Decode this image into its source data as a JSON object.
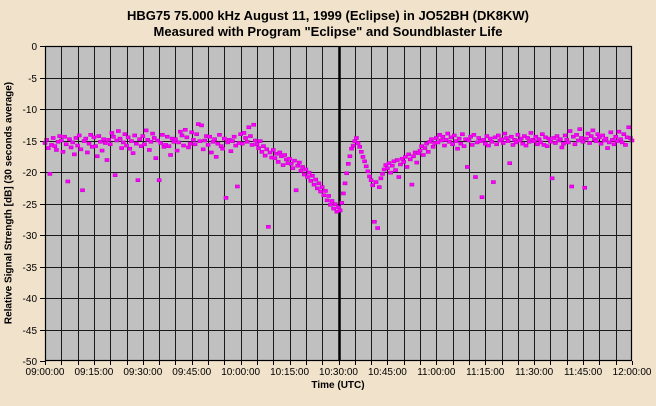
{
  "window": {
    "background_color": "#F1E2CB"
  },
  "title": {
    "line1": "HBG75 75.000 kHz August 11, 1999 (Eclipse) in JO52BH (DK8KW)",
    "line2": "Measured with Program \"Eclipse\" and Soundblaster Life"
  },
  "chart_data": {
    "type": "scatter",
    "title": "HBG75 75.000 kHz August 11, 1999 (Eclipse) in JO52BH (DK8KW)",
    "subtitle": "Measured with Program \"Eclipse\" and Soundblaster Life",
    "xlabel": "Time (UTC)",
    "ylabel": "Relative Signal Strength [dB] (30 seconds average)",
    "x_ticks": [
      "09:00:00",
      "09:15:00",
      "09:30:00",
      "09:45:00",
      "10:00:00",
      "10:15:00",
      "10:30:00",
      "10:45:00",
      "11:00:00",
      "11:15:00",
      "11:30:00",
      "11:45:00",
      "12:00:00"
    ],
    "x_tick_interval_minutes": 15,
    "x_minor_tick_minutes": 5,
    "x_range_minutes": 180,
    "y_ticks": [
      0,
      -5,
      -10,
      -15,
      -20,
      -25,
      -30,
      -35,
      -40,
      -45,
      -50
    ],
    "ylim": [
      -50,
      0
    ],
    "grid": true,
    "plot_bg": "#C0C0C0",
    "grid_color": "#1A1A1A",
    "border_color": "#000000",
    "point_color": "#FF00FF",
    "point_edge_color": "#C800C8",
    "text_color": "#000000",
    "eclipse_marker": {
      "time": "10:30:00",
      "minutes": 90,
      "stroke_width": 2.5,
      "color": "#000000"
    },
    "series": {
      "name": "Relative signal strength",
      "start": "09:00:00",
      "step_seconds": 30,
      "unit": "dB",
      "values": [
        -15.4,
        -14.9,
        -16.2,
        -20.3,
        -15.7,
        -14.6,
        -15.9,
        -16.5,
        -15.2,
        -14.3,
        -15.0,
        -16.8,
        -14.4,
        -15.6,
        -21.5,
        -14.8,
        -16.1,
        -15.3,
        -17.2,
        -14.6,
        -15.8,
        -14.2,
        -16.4,
        -22.9,
        -15.1,
        -14.7,
        -16.9,
        -15.5,
        -14.1,
        -16.0,
        -14.5,
        -15.9,
        -17.5,
        -14.3,
        -15.2,
        -16.6,
        -14.8,
        -15.4,
        -18.1,
        -14.9,
        -15.6,
        -13.8,
        -14.4,
        -20.5,
        -15.0,
        -13.5,
        -14.7,
        -16.2,
        -15.3,
        -14.0,
        -15.8,
        -14.5,
        -16.3,
        -15.1,
        -17.0,
        -14.2,
        -15.5,
        -21.3,
        -14.8,
        -15.9,
        -14.3,
        -15.6,
        -13.4,
        -14.9,
        -16.5,
        -15.2,
        -13.9,
        -14.6,
        -17.8,
        -15.0,
        -21.3,
        -15.4,
        -14.1,
        -16.0,
        -15.7,
        -14.4,
        -15.9,
        -17.3,
        -14.7,
        -15.2,
        -14.8,
        -16.6,
        -15.3,
        -13.6,
        -14.2,
        -15.8,
        -13.3,
        -14.5,
        -16.1,
        -15.5,
        -13.7,
        -14.9,
        -15.6,
        -14.0,
        -12.4,
        -15.1,
        -12.6,
        -16.4,
        -15.0,
        -14.3,
        -15.7,
        -14.4,
        -16.9,
        -15.2,
        -14.8,
        -17.6,
        -15.5,
        -14.1,
        -15.9,
        -16.3,
        -14.7,
        -24.1,
        -15.3,
        -14.9,
        -16.7,
        -15.1,
        -14.4,
        -15.8,
        -22.3,
        -15.4,
        -14.0,
        -15.5,
        -13.8,
        -14.6,
        -15.2,
        -12.9,
        -14.3,
        -15.7,
        -12.5,
        -15.0,
        -15.6,
        -16.2,
        -15.1,
        -16.8,
        -15.9,
        -17.4,
        -16.4,
        -28.7,
        -16.9,
        -17.7,
        -16.5,
        -17.8,
        -17.1,
        -18.4,
        -16.9,
        -17.5,
        -18.9,
        -17.3,
        -18.0,
        -18.6,
        -17.9,
        -18.7,
        -19.4,
        -18.2,
        -22.9,
        -19.0,
        -18.5,
        -19.8,
        -19.2,
        -20.4,
        -19.6,
        -20.8,
        -20.1,
        -21.4,
        -20.6,
        -22.0,
        -21.2,
        -22.6,
        -21.8,
        -23.1,
        -22.4,
        -23.7,
        -23.0,
        -24.5,
        -23.8,
        -25.2,
        -24.6,
        -25.8,
        -25.1,
        -26.3,
        -25.6,
        -26.1,
        -24.9,
        -23.4,
        -21.8,
        -20.2,
        -18.7,
        -17.5,
        -16.3,
        -15.8,
        -15.1,
        -14.6,
        -15.4,
        -16.0,
        -16.8,
        -17.6,
        -18.3,
        -19.1,
        -19.9,
        -20.7,
        -21.3,
        -22.1,
        -27.9,
        -21.6,
        -28.9,
        -22.4,
        -21.0,
        -20.3,
        -19.6,
        -18.9,
        -19.4,
        -18.6,
        -20.1,
        -19.0,
        -18.3,
        -19.7,
        -18.1,
        -20.8,
        -18.8,
        -17.9,
        -18.4,
        -17.6,
        -19.2,
        -17.2,
        -18.0,
        -22.0,
        -17.5,
        -16.9,
        -18.5,
        -17.0,
        -16.6,
        -15.9,
        -17.3,
        -16.2,
        -15.5,
        -16.8,
        -15.2,
        -14.8,
        -16.0,
        -15.4,
        -14.6,
        -15.3,
        -14.1,
        -15.0,
        -14.4,
        -15.8,
        -14.9,
        -13.9,
        -15.2,
        -14.5,
        -15.6,
        -14.2,
        -15.1,
        -16.3,
        -14.7,
        -15.5,
        -14.0,
        -15.9,
        -14.8,
        -19.2,
        -15.0,
        -14.4,
        -15.7,
        -14.1,
        -20.8,
        -15.3,
        -14.6,
        -15.1,
        -24.0,
        -14.9,
        -15.5,
        -14.3,
        -15.8,
        -14.7,
        -15.2,
        -21.6,
        -14.5,
        -15.6,
        -14.2,
        -15.0,
        -14.8,
        -15.4,
        -13.9,
        -14.6,
        -15.1,
        -18.6,
        -14.4,
        -15.7,
        -14.9,
        -15.3,
        -14.1,
        -15.0,
        -14.7,
        -15.5,
        -14.3,
        -15.8,
        -14.6,
        -15.2,
        -13.8,
        -14.9,
        -15.1,
        -14.4,
        -15.6,
        -14.8,
        -15.3,
        -14.0,
        -15.7,
        -14.5,
        -15.9,
        -14.7,
        -15.2,
        -21.0,
        -14.6,
        -15.4,
        -14.3,
        -15.0,
        -14.8,
        -16.1,
        -15.5,
        -14.2,
        -14.9,
        -15.3,
        -13.5,
        -22.3,
        -14.4,
        -15.6,
        -14.1,
        -15.0,
        -13.2,
        -14.6,
        -15.2,
        -22.5,
        -14.7,
        -13.9,
        -15.4,
        -14.3,
        -13.4,
        -14.8,
        -15.1,
        -14.0,
        -14.5,
        -15.5,
        -14.2,
        -15.0,
        -14.7,
        -16.2,
        -15.3,
        -13.7,
        -14.9,
        -15.6,
        -14.4,
        -15.1,
        -13.6,
        -14.8,
        -15.3,
        -14.0,
        -15.7,
        -14.5,
        -12.9,
        -14.6,
        -15.0
      ]
    }
  }
}
